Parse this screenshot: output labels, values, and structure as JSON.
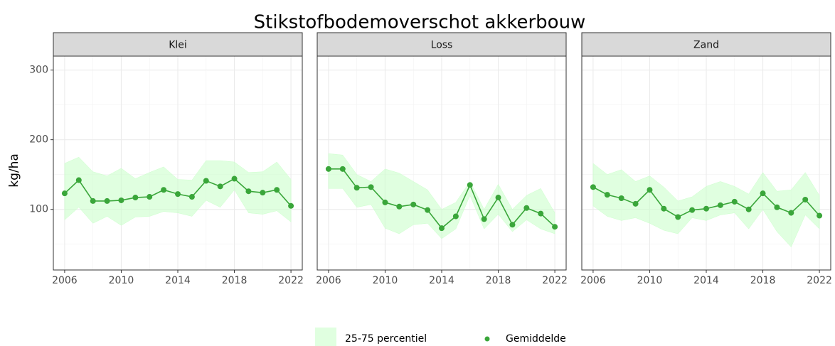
{
  "title": "Stikstofbodemoverschot akkerbouw",
  "ylabel": "kg/ha",
  "chart_data": [
    {
      "type": "line",
      "title": "Klei",
      "x": [
        2006,
        2007,
        2008,
        2009,
        2010,
        2011,
        2012,
        2013,
        2014,
        2015,
        2016,
        2017,
        2018,
        2019,
        2020,
        2021,
        2022
      ],
      "series": [
        {
          "name": "Gemiddelde",
          "color": "#3aa63a",
          "values": [
            123,
            142,
            112,
            112,
            113,
            117,
            118,
            128,
            122,
            118,
            141,
            133,
            144,
            126,
            124,
            128,
            105
          ]
        }
      ],
      "band": {
        "name": "25-75 percentiel",
        "color": "#ccffcc",
        "lower": [
          85,
          103,
          80,
          90,
          77,
          89,
          90,
          97,
          95,
          90,
          113,
          103,
          128,
          95,
          93,
          98,
          82
        ],
        "upper": [
          166,
          175,
          154,
          148,
          159,
          144,
          153,
          161,
          143,
          142,
          170,
          170,
          168,
          153,
          154,
          168,
          143
        ]
      },
      "xlim": [
        2005.2,
        2022.8
      ],
      "ylim": [
        13,
        320
      ],
      "xticks": [
        2006,
        2010,
        2014,
        2018,
        2022
      ],
      "yticks": [
        100,
        200,
        300
      ],
      "xminor": [
        2008,
        2012,
        2016,
        2020
      ],
      "yminor": [
        50,
        150,
        250
      ],
      "grid": true
    },
    {
      "type": "line",
      "title": "Loss",
      "x": [
        2006,
        2007,
        2008,
        2009,
        2010,
        2011,
        2012,
        2013,
        2014,
        2015,
        2016,
        2017,
        2018,
        2019,
        2020,
        2021,
        2022
      ],
      "series": [
        {
          "name": "Gemiddelde",
          "color": "#3aa63a",
          "values": [
            158,
            158,
            131,
            132,
            110,
            104,
            107,
            99,
            73,
            90,
            135,
            86,
            117,
            78,
            102,
            94,
            75
          ]
        }
      ],
      "band": {
        "name": "25-75 percentiel",
        "color": "#ccffcc",
        "lower": [
          130,
          130,
          103,
          107,
          73,
          65,
          78,
          80,
          58,
          72,
          120,
          72,
          93,
          68,
          85,
          72,
          65
        ],
        "upper": [
          180,
          178,
          150,
          140,
          158,
          152,
          140,
          128,
          100,
          110,
          140,
          100,
          136,
          100,
          120,
          130,
          95
        ]
      },
      "xlim": [
        2005.2,
        2022.8
      ],
      "ylim": [
        13,
        320
      ],
      "xticks": [
        2006,
        2010,
        2014,
        2018,
        2022
      ],
      "yticks": [
        100,
        200,
        300
      ],
      "xminor": [
        2008,
        2012,
        2016,
        2020
      ],
      "yminor": [
        50,
        150,
        250
      ],
      "grid": true
    },
    {
      "type": "line",
      "title": "Zand",
      "x": [
        2006,
        2007,
        2008,
        2009,
        2010,
        2011,
        2012,
        2013,
        2014,
        2015,
        2016,
        2017,
        2018,
        2019,
        2020,
        2021,
        2022
      ],
      "series": [
        {
          "name": "Gemiddelde",
          "color": "#3aa63a",
          "values": [
            132,
            121,
            116,
            108,
            128,
            101,
            89,
            99,
            101,
            106,
            111,
            100,
            123,
            103,
            95,
            114,
            91
          ]
        }
      ],
      "band": {
        "name": "25-75 percentiel",
        "color": "#ccffcc",
        "lower": [
          105,
          90,
          84,
          88,
          80,
          70,
          65,
          88,
          84,
          92,
          95,
          72,
          100,
          68,
          46,
          92,
          72
        ],
        "upper": [
          166,
          150,
          157,
          140,
          148,
          132,
          112,
          118,
          133,
          140,
          133,
          122,
          153,
          126,
          128,
          153,
          120
        ]
      },
      "xlim": [
        2005.2,
        2022.8
      ],
      "ylim": [
        13,
        320
      ],
      "xticks": [
        2006,
        2010,
        2014,
        2018,
        2022
      ],
      "yticks": [
        100,
        200,
        300
      ],
      "xminor": [
        2008,
        2012,
        2016,
        2020
      ],
      "yminor": [
        50,
        150,
        250
      ],
      "grid": true
    }
  ]
}
